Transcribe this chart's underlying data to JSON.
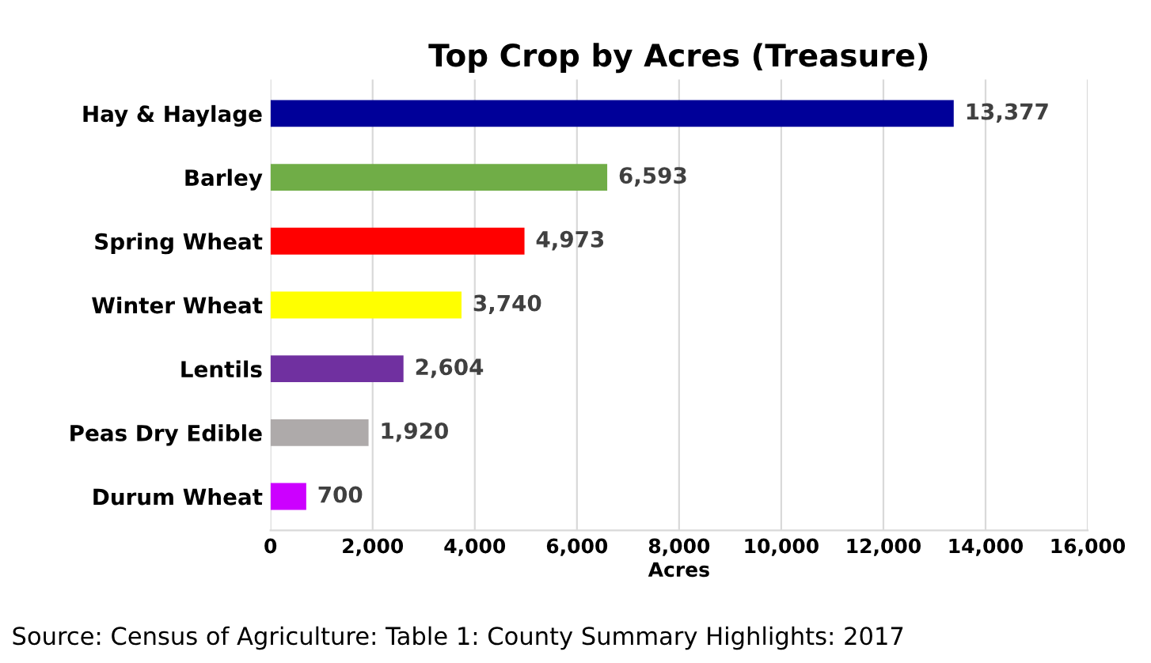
{
  "chart_data": {
    "type": "bar",
    "orientation": "horizontal",
    "title": "Top Crop by Acres (Treasure)",
    "xlabel": "Acres",
    "categories": [
      "Hay & Haylage",
      "Barley",
      "Spring Wheat",
      "Winter Wheat",
      "Lentils",
      "Peas Dry Edible",
      "Durum Wheat"
    ],
    "values": [
      13377,
      6593,
      4973,
      3740,
      2604,
      1920,
      700
    ],
    "colors": [
      "#000099",
      "#70ad47",
      "#ff0000",
      "#ffff00",
      "#7030a0",
      "#aeaaaa",
      "#cc00ff"
    ],
    "value_labels": [
      "13,377",
      "6,593",
      "4,973",
      "3,740",
      "2,604",
      "1,920",
      "700"
    ],
    "xlim": [
      0,
      16000
    ],
    "xticks": [
      0,
      {
        "value": 2000,
        "label": "2,000"
      },
      {
        "value": 4000,
        "label": "4,000"
      },
      {
        "value": 6000,
        "label": "6,000"
      },
      {
        "value": 8000,
        "label": "8,000"
      },
      {
        "value": 10000,
        "label": "10,000"
      },
      {
        "value": 12000,
        "label": "12,000"
      },
      {
        "value": 14000,
        "label": "14,000"
      },
      {
        "value": 16000,
        "label": "16,000"
      }
    ],
    "grid": "x",
    "annotations": [
      "Source: Census of Agriculture: Table 1: County Summary Highlights: 2017"
    ]
  }
}
